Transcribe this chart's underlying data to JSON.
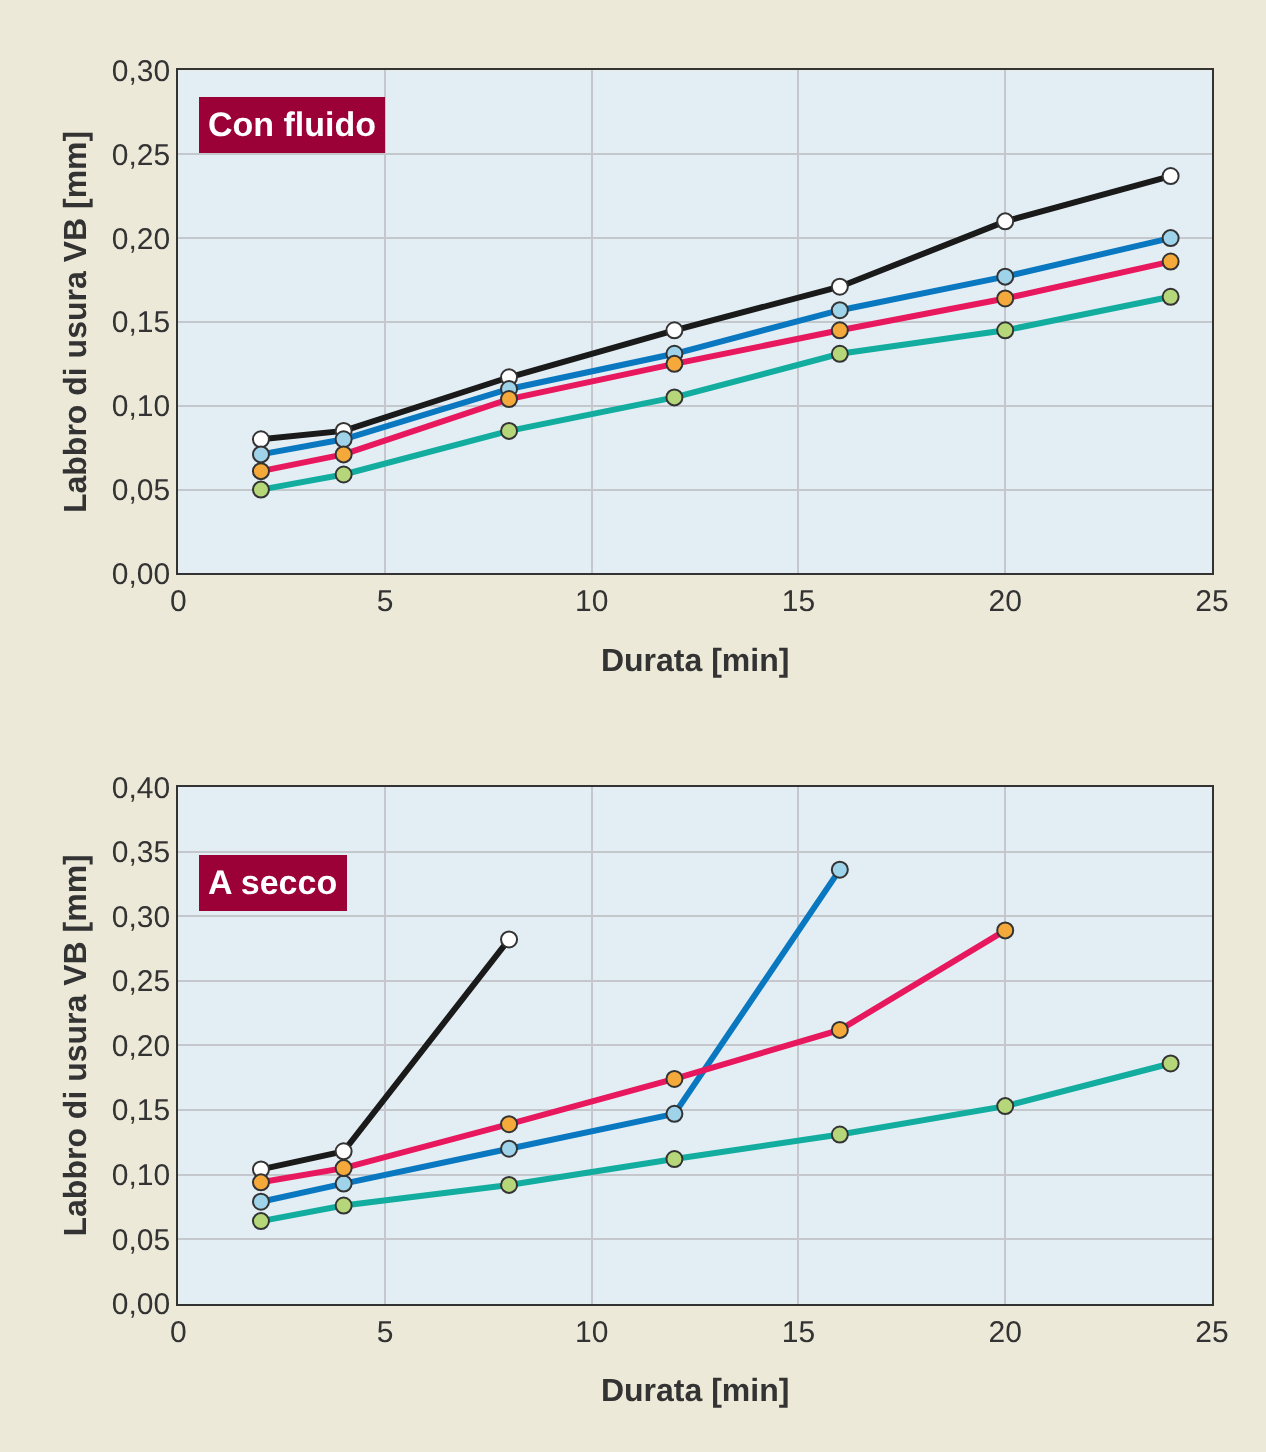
{
  "chart_data": [
    {
      "type": "line",
      "title": "Con fluido",
      "xlabel": "Durata [min]",
      "ylabel": "Labbro di usura VB [mm]",
      "x": [
        2,
        4,
        8,
        12,
        16,
        20,
        24
      ],
      "xlim": [
        0,
        25
      ],
      "xticks": [
        0,
        5,
        10,
        15,
        20,
        25
      ],
      "ylim": [
        0,
        0.3
      ],
      "yticks": [
        {
          "value": 0,
          "label": "0,00"
        },
        {
          "value": 0.05,
          "label": "0,05"
        },
        {
          "value": 0.1,
          "label": "0,10"
        },
        {
          "value": 0.15,
          "label": "0,15"
        },
        {
          "value": 0.2,
          "label": "0,20"
        },
        {
          "value": 0.25,
          "label": "0,25"
        },
        {
          "value": 0.3,
          "label": "0,30"
        }
      ],
      "grid": true,
      "marker": "circle",
      "line_style": "solid",
      "series": [
        {
          "color": "#1a1a1a",
          "colors": [
            "#ffffff",
            "#ffffff",
            "#ffffff",
            "#ffffff",
            "#ffffff",
            "#ffffff",
            "#ffffff"
          ],
          "values": [
            0.08,
            0.085,
            0.117,
            0.145,
            0.171,
            0.21,
            0.237
          ]
        },
        {
          "color": "#0a78c0",
          "colors": [
            "#9fd3ea",
            "#9fd3ea",
            "#9fd3ea",
            "#9fd3ea",
            "#9fd3ea",
            "#9fd3ea",
            "#9fd3ea"
          ],
          "values": [
            0.071,
            0.08,
            0.11,
            0.131,
            0.157,
            0.177,
            0.2
          ]
        },
        {
          "color": "#e8185e",
          "colors": [
            "#f6a93b",
            "#f6a93b",
            "#f6a93b",
            "#f6a93b",
            "#f6a93b",
            "#f6a93b",
            "#f6a93b"
          ],
          "values": [
            0.061,
            0.071,
            0.104,
            0.125,
            0.145,
            0.164,
            0.186
          ]
        },
        {
          "color": "#13ada0",
          "colors": [
            "#b5d77a",
            "#b5d77a",
            "#b5d77a",
            "#b5d77a",
            "#b5d77a",
            "#b5d77a",
            "#b5d77a"
          ],
          "values": [
            0.05,
            0.059,
            0.085,
            0.105,
            0.131,
            0.145,
            0.165
          ]
        }
      ]
    },
    {
      "type": "line",
      "title": "A secco",
      "xlabel": "Durata [min]",
      "ylabel": "Labbro di usura VB [mm]",
      "xlim": [
        0,
        25
      ],
      "xticks": [
        0,
        5,
        10,
        15,
        20,
        25
      ],
      "ylim": [
        0,
        0.4
      ],
      "yticks": [
        {
          "value": 0,
          "label": "0,00"
        },
        {
          "value": 0.05,
          "label": "0,05"
        },
        {
          "value": 0.1,
          "label": "0,10"
        },
        {
          "value": 0.15,
          "label": "0,15"
        },
        {
          "value": 0.2,
          "label": "0,20"
        },
        {
          "value": 0.25,
          "label": "0,25"
        },
        {
          "value": 0.3,
          "label": "0,30"
        },
        {
          "value": 0.35,
          "label": "0,35"
        },
        {
          "value": 0.4,
          "label": "0,40"
        }
      ],
      "grid": true,
      "marker": "circle",
      "line_style": "solid",
      "series": [
        {
          "color": "#1a1a1a",
          "x": [
            2,
            4,
            8
          ],
          "colors": [
            "#ffffff",
            "#ffffff",
            "#ffffff"
          ],
          "values": [
            0.104,
            0.118,
            0.282
          ]
        },
        {
          "color": "#0a78c0",
          "x": [
            2,
            4,
            8,
            12,
            16
          ],
          "colors": [
            "#9fd3ea",
            "#9fd3ea",
            "#9fd3ea",
            "#9fd3ea",
            "#9fd3ea"
          ],
          "values": [
            0.079,
            0.093,
            0.12,
            0.147,
            0.336
          ]
        },
        {
          "color": "#e8185e",
          "x": [
            2,
            4,
            8,
            12,
            16,
            20
          ],
          "colors": [
            "#f6a93b",
            "#f6a93b",
            "#f6a93b",
            "#f6a93b",
            "#f6a93b",
            "#f6a93b"
          ],
          "values": [
            0.094,
            0.105,
            0.139,
            0.174,
            0.212,
            0.289
          ]
        },
        {
          "color": "#13ada0",
          "x": [
            2,
            4,
            8,
            12,
            16,
            20,
            24
          ],
          "colors": [
            "#b5d77a",
            "#b5d77a",
            "#b5d77a",
            "#b5d77a",
            "#b5d77a",
            "#b5d77a",
            "#b5d77a"
          ],
          "values": [
            0.064,
            0.076,
            0.092,
            0.112,
            0.131,
            0.153,
            0.186
          ]
        }
      ]
    }
  ]
}
